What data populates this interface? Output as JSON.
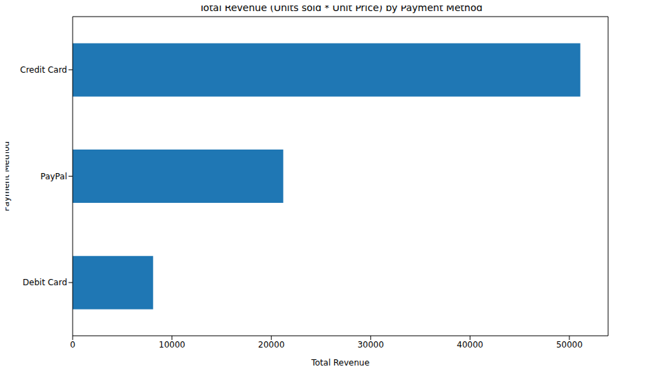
{
  "chart_data": {
    "type": "bar",
    "orientation": "horizontal",
    "title": "Total Revenue (Units sold * Unit Price) by Payment Method",
    "x_label": "Total Revenue",
    "y_label": "Payment Method",
    "categories": [
      "Credit Card",
      "PayPal",
      "Debit Card"
    ],
    "values": [
      51100,
      21200,
      8100
    ],
    "color": "#1f77b4",
    "xlim": [
      0,
      53900
    ],
    "xticks": [
      0,
      10000,
      20000,
      30000,
      40000,
      50000
    ],
    "grid": false
  }
}
